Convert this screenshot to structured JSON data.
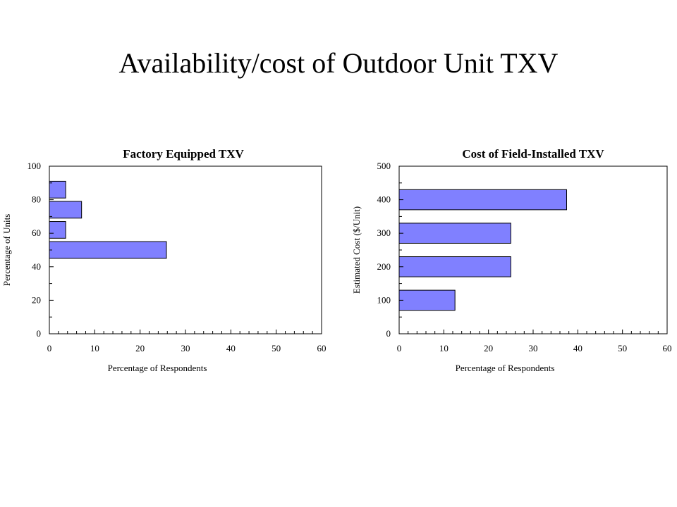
{
  "slide": {
    "title": "Availability/cost of Outdoor Unit TXV"
  },
  "chart_data": [
    {
      "type": "bar",
      "orientation": "horizontal",
      "title": "Factory Equipped TXV",
      "xlabel": "Percentage of Respondents",
      "ylabel": "Percentage of Units",
      "xlim": [
        0,
        60
      ],
      "ylim": [
        0,
        100
      ],
      "xticks": [
        0,
        10,
        20,
        30,
        40,
        50,
        60
      ],
      "yticks": [
        0,
        20,
        40,
        60,
        80,
        100
      ],
      "bar_color": "#8080ff",
      "bars": [
        {
          "y": 50,
          "value": 25.8
        },
        {
          "y": 62,
          "value": 3.6
        },
        {
          "y": 74,
          "value": 7.1
        },
        {
          "y": 86,
          "value": 3.6
        }
      ],
      "bar_thickness": 10,
      "grid": false,
      "legend": "none"
    },
    {
      "type": "bar",
      "orientation": "horizontal",
      "title": "Cost of Field-Installed TXV",
      "xlabel": "Percentage of Respondents",
      "ylabel": "Estimated Cost ($/Unit)",
      "xlim": [
        0,
        60
      ],
      "ylim": [
        0,
        500
      ],
      "xticks": [
        0,
        10,
        20,
        30,
        40,
        50,
        60
      ],
      "yticks": [
        0,
        100,
        200,
        300,
        400,
        500
      ],
      "bar_color": "#8080ff",
      "bars": [
        {
          "y": 100,
          "value": 12.5
        },
        {
          "y": 200,
          "value": 25
        },
        {
          "y": 300,
          "value": 25
        },
        {
          "y": 400,
          "value": 37.5
        }
      ],
      "bar_thickness": 60,
      "grid": false,
      "legend": "none"
    }
  ]
}
